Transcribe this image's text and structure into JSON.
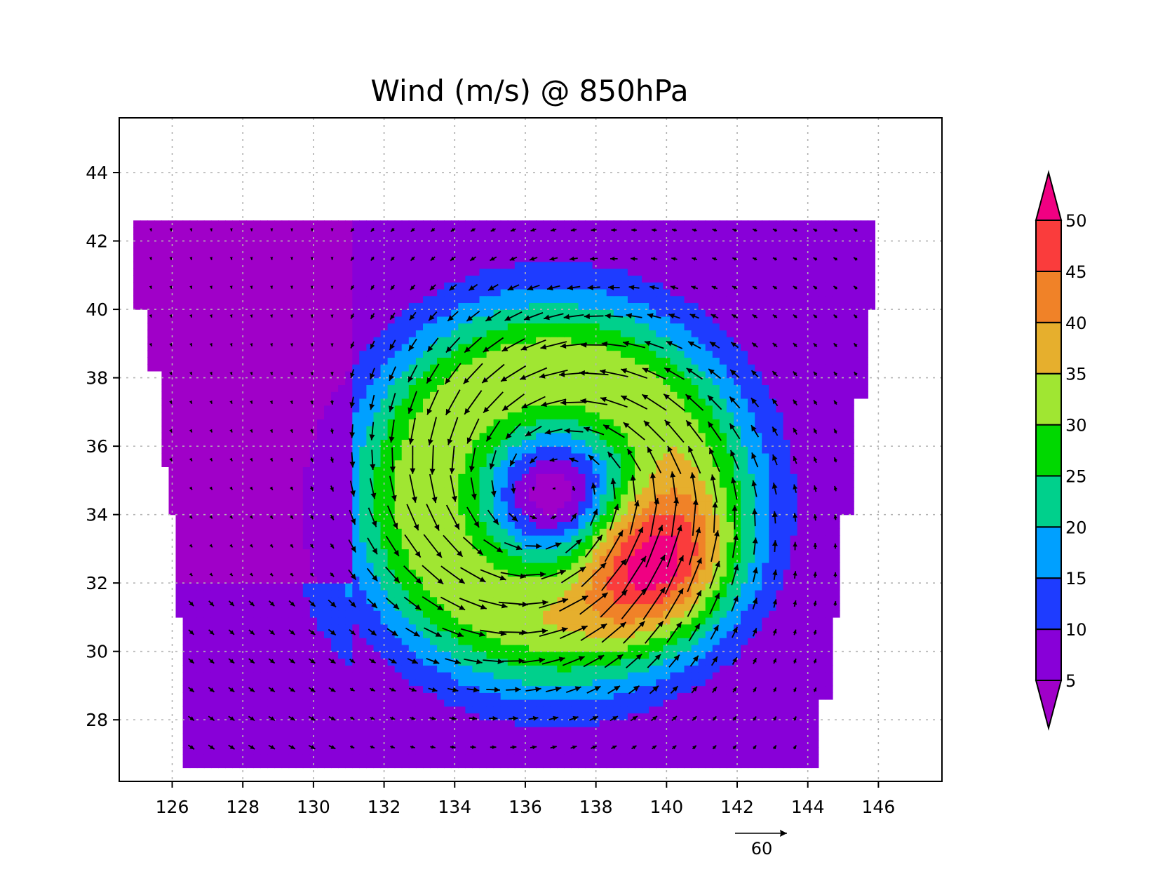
{
  "title": "Wind (m/s) @ 850hPa",
  "map": {
    "lon_range": [
      124.5,
      147.8
    ],
    "lat_range": [
      26.2,
      45.6
    ],
    "lon_ticks": [
      126,
      128,
      130,
      132,
      134,
      136,
      138,
      140,
      142,
      144,
      146
    ],
    "lat_ticks": [
      28,
      30,
      32,
      34,
      36,
      38,
      40,
      42,
      44
    ],
    "grid": "dotted",
    "storm_center_approx": {
      "lon": 136.8,
      "lat": 34.6
    },
    "max_wind_region_approx": {
      "lon": 139.6,
      "lat": 32.8
    }
  },
  "colorbar": {
    "levels": [
      5,
      10,
      15,
      20,
      25,
      30,
      35,
      40,
      45,
      50
    ],
    "colors": [
      "#8800d8",
      "#1e3cff",
      "#00a0ff",
      "#00d08c",
      "#00d800",
      "#a0e632",
      "#e6af2d",
      "#f08228",
      "#fa3c3c",
      "#f00082"
    ],
    "under_color": "#a000c8",
    "over_color": "#f00082",
    "placement": "right"
  },
  "vector_reference": {
    "label": "60",
    "speed": 60
  }
}
